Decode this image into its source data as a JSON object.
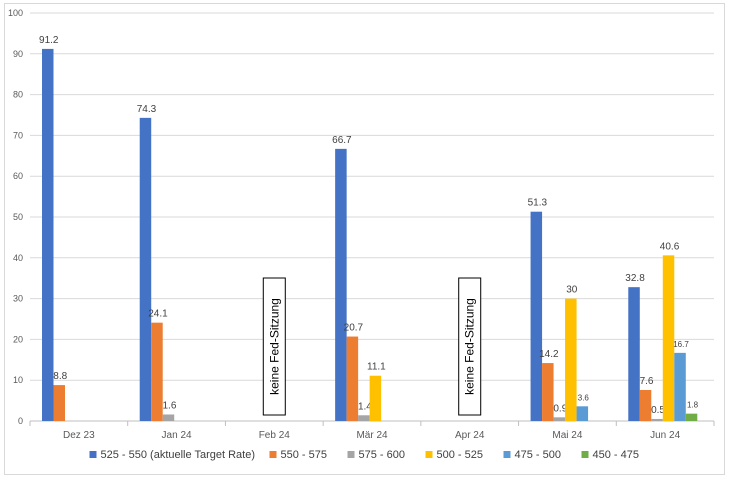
{
  "chart_data": {
    "type": "bar",
    "title": "",
    "xlabel": "",
    "ylabel": "",
    "ylim": [
      0,
      100
    ],
    "yticks": [
      0,
      10,
      20,
      30,
      40,
      50,
      60,
      70,
      80,
      90,
      100
    ],
    "grid": true,
    "legend_position": "bottom",
    "categories": [
      "Dez 23",
      "Jan 24",
      "Feb 24",
      "Mär 24",
      "Apr 24",
      "Mai 24",
      "Jun 24"
    ],
    "series": [
      {
        "name": "525 - 550 (aktuelle Target Rate)",
        "color": "#4472c4",
        "values": [
          91.2,
          74.3,
          null,
          66.7,
          null,
          51.3,
          32.8
        ]
      },
      {
        "name": "550 - 575",
        "color": "#ed7d31",
        "values": [
          8.8,
          24.1,
          null,
          20.7,
          null,
          14.2,
          7.6
        ]
      },
      {
        "name": "575 - 600",
        "color": "#a5a5a5",
        "values": [
          null,
          1.6,
          null,
          1.4,
          null,
          0.9,
          0.5
        ]
      },
      {
        "name": "500 - 525",
        "color": "#ffc000",
        "values": [
          null,
          null,
          null,
          11.1,
          null,
          30,
          40.6
        ]
      },
      {
        "name": "475 - 500",
        "color": "#5b9bd5",
        "values": [
          null,
          null,
          null,
          null,
          null,
          3.6,
          16.7
        ]
      },
      {
        "name": "450 - 475",
        "color": "#70ad47",
        "values": [
          null,
          null,
          null,
          null,
          null,
          null,
          1.8
        ]
      }
    ],
    "data_labels": [
      [
        "91.2",
        "74.3",
        null,
        "66.7",
        null,
        "51.3",
        "32.8"
      ],
      [
        "8.8",
        "24.1",
        null,
        "20.7",
        null,
        "14.2",
        "7.6"
      ],
      [
        null,
        "1.6",
        null,
        "1.4",
        null,
        "0.9",
        "0.5"
      ],
      [
        null,
        null,
        null,
        "11.1",
        null,
        "30",
        "40.6"
      ],
      [
        null,
        null,
        null,
        null,
        null,
        "3.6",
        "16.7"
      ],
      [
        null,
        null,
        null,
        null,
        null,
        null,
        "1.8"
      ]
    ],
    "annotations": [
      {
        "category": "Feb 24",
        "text": "keine Fed-Sitzung"
      },
      {
        "category": "Apr 24",
        "text": "keine Fed-Sitzung"
      }
    ]
  }
}
